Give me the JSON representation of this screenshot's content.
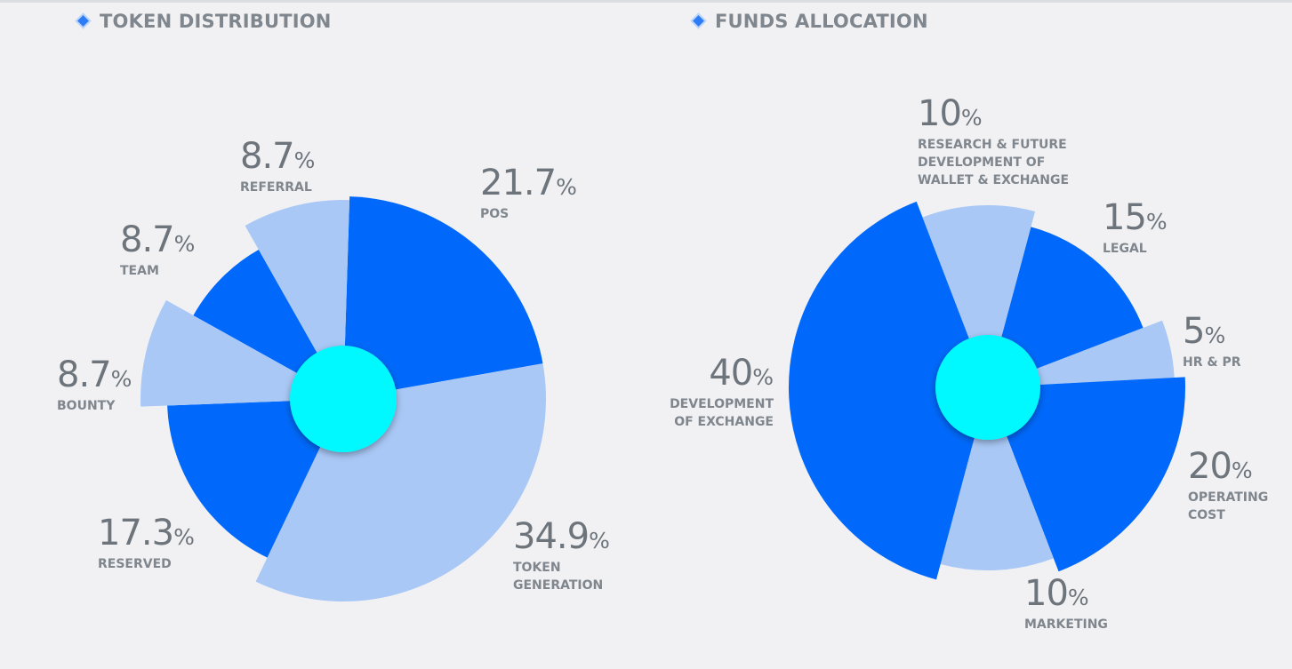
{
  "colors": {
    "dark": "#0069fb",
    "light": "#a9c8f6",
    "center": "#00f8ff"
  },
  "chart_data": [
    {
      "type": "pie",
      "title": "TOKEN DISTRIBUTION",
      "slices": [
        {
          "label": "POS",
          "value": 21.7,
          "color": "dark",
          "display": "21.7"
        },
        {
          "label": "TOKEN\nGENERATION",
          "value": 34.9,
          "color": "light",
          "display": "34.9"
        },
        {
          "label": "RESERVED",
          "value": 17.3,
          "color": "dark",
          "display": "17.3"
        },
        {
          "label": "BOUNTY",
          "value": 8.7,
          "color": "light",
          "display": "8.7"
        },
        {
          "label": "TEAM",
          "value": 8.7,
          "color": "dark",
          "display": "8.7"
        },
        {
          "label": "REFERRAL",
          "value": 8.7,
          "color": "light",
          "display": "8.7"
        }
      ]
    },
    {
      "type": "pie",
      "title": "FUNDS ALLOCATION",
      "slices": [
        {
          "label": "LEGAL",
          "value": 15,
          "color": "dark",
          "display": "15"
        },
        {
          "label": "HR & PR",
          "value": 5,
          "color": "light",
          "display": "5"
        },
        {
          "label": "OPERATING\nCOST",
          "value": 20,
          "color": "dark",
          "display": "20"
        },
        {
          "label": "MARKETING",
          "value": 10,
          "color": "light",
          "display": "10"
        },
        {
          "label": "DEVELOPMENT\nOF EXCHANGE",
          "value": 40,
          "color": "dark",
          "display": "40"
        },
        {
          "label": "RESEARCH & FUTURE\nDEVELOPMENT OF\nWALLET & EXCHANGE",
          "value": 10,
          "color": "light",
          "display": "10"
        }
      ]
    }
  ],
  "percent_sign": "%"
}
